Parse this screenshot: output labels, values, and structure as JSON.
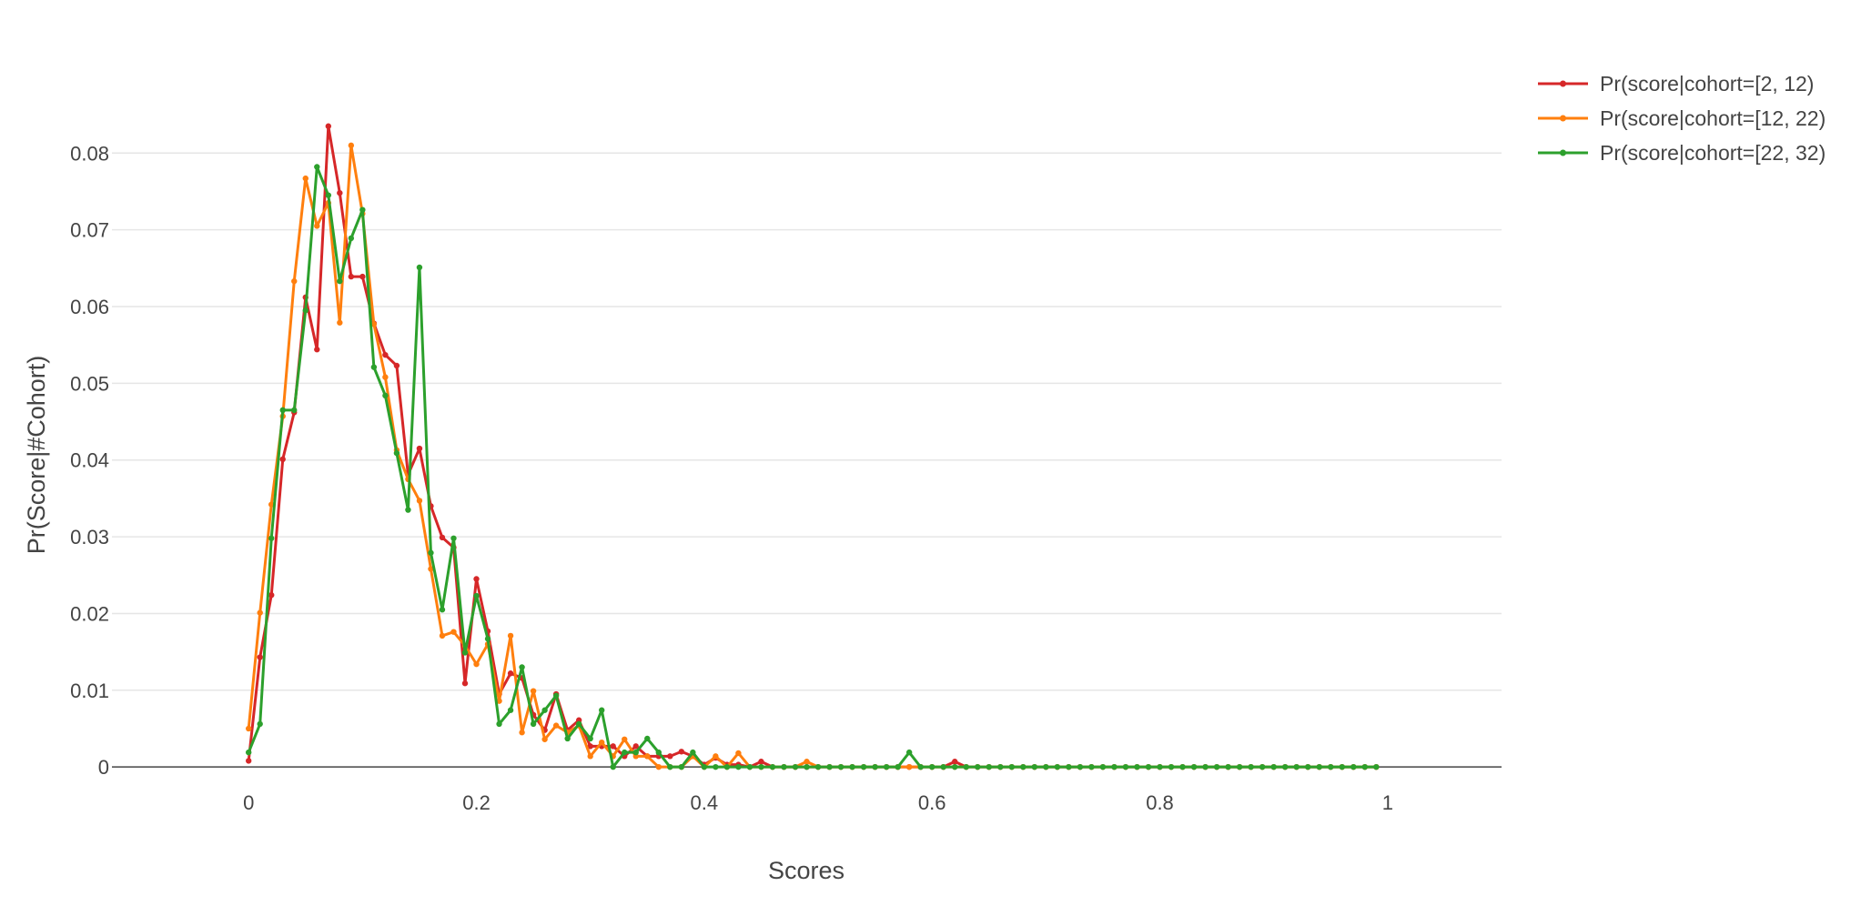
{
  "chart_data": {
    "type": "line",
    "title": "",
    "xlabel": "Scores",
    "ylabel": "Pr(Score|#Cohort)",
    "xlim": [
      -0.12,
      1.1
    ],
    "ylim": [
      -0.0065,
      0.0875
    ],
    "x_ticks": [
      {
        "value": 0,
        "label": "0"
      },
      {
        "value": 0.2,
        "label": "0.2"
      },
      {
        "value": 0.4,
        "label": "0.4"
      },
      {
        "value": 0.6,
        "label": "0.6"
      },
      {
        "value": 0.8,
        "label": "0.8"
      },
      {
        "value": 1,
        "label": "1"
      }
    ],
    "y_ticks": [
      {
        "value": 0,
        "label": "0"
      },
      {
        "value": 0.01,
        "label": "0.01"
      },
      {
        "value": 0.02,
        "label": "0.02"
      },
      {
        "value": 0.03,
        "label": "0.03"
      },
      {
        "value": 0.04,
        "label": "0.04"
      },
      {
        "value": 0.05,
        "label": "0.05"
      },
      {
        "value": 0.06,
        "label": "0.06"
      },
      {
        "value": 0.07,
        "label": "0.07"
      },
      {
        "value": 0.08,
        "label": "0.08"
      }
    ],
    "grid": true,
    "legend_position": "top-right",
    "x": [
      0,
      0.01,
      0.02,
      0.03,
      0.04,
      0.05,
      0.06,
      0.07,
      0.08,
      0.09,
      0.1,
      0.11,
      0.12,
      0.13,
      0.14,
      0.15,
      0.16,
      0.17,
      0.18,
      0.19,
      0.2,
      0.21,
      0.22,
      0.23,
      0.24,
      0.25,
      0.26,
      0.27,
      0.28,
      0.29,
      0.3,
      0.31,
      0.32,
      0.33,
      0.34,
      0.35,
      0.36,
      0.37,
      0.38,
      0.39,
      0.4,
      0.41,
      0.42,
      0.43,
      0.44,
      0.45,
      0.46,
      0.47,
      0.48,
      0.49,
      0.5,
      0.51,
      0.52,
      0.53,
      0.54,
      0.55,
      0.56,
      0.57,
      0.58,
      0.59,
      0.6,
      0.61,
      0.62,
      0.63,
      0.64,
      0.65,
      0.66,
      0.67,
      0.68,
      0.69,
      0.7,
      0.71,
      0.72,
      0.73,
      0.74,
      0.75,
      0.76,
      0.77,
      0.78,
      0.79,
      0.8,
      0.81,
      0.82,
      0.83,
      0.84,
      0.85,
      0.86,
      0.87,
      0.88,
      0.89,
      0.9,
      0.91,
      0.92,
      0.93,
      0.94,
      0.95,
      0.96,
      0.97,
      0.98,
      0.99
    ],
    "series": [
      {
        "name": "Pr(score|cohort=[2, 12)",
        "color": "#d62728",
        "values": [
          0.0008,
          0.0143,
          0.0224,
          0.0401,
          0.0462,
          0.0612,
          0.0544,
          0.0835,
          0.0748,
          0.0639,
          0.0639,
          0.0578,
          0.0537,
          0.0523,
          0.0381,
          0.0415,
          0.034,
          0.0299,
          0.0286,
          0.0109,
          0.0245,
          0.0177,
          0.0095,
          0.0122,
          0.0116,
          0.0068,
          0.0048,
          0.0095,
          0.0048,
          0.0061,
          0.0027,
          0.0027,
          0.0027,
          0.0014,
          0.0027,
          0.0014,
          0.0014,
          0.0014,
          0.002,
          0.0014,
          0.0003,
          0.0012,
          0.0003,
          0.0003,
          0.0,
          0.0007,
          0.0,
          0.0,
          0.0,
          0.0,
          0.0,
          0.0,
          0.0,
          0.0,
          0.0,
          0.0,
          0.0,
          0.0,
          0.0,
          0.0,
          0.0,
          0.0,
          0.0007,
          0.0,
          0.0,
          0.0,
          0.0,
          0.0,
          0.0,
          0.0,
          0.0,
          0.0,
          0.0,
          0.0,
          0.0,
          0.0,
          0.0,
          0.0,
          0.0,
          0.0,
          0.0,
          0.0,
          0.0,
          0.0,
          0.0,
          0.0,
          0.0,
          0.0,
          0.0,
          0.0,
          0.0,
          0.0,
          0.0,
          0.0,
          0.0,
          0.0,
          0.0,
          0.0,
          0.0,
          0.0
        ]
      },
      {
        "name": "Pr(score|cohort=[12, 22)",
        "color": "#ff7f0e",
        "values": [
          0.005,
          0.0201,
          0.0342,
          0.0457,
          0.0633,
          0.0767,
          0.0705,
          0.0735,
          0.0579,
          0.081,
          0.0721,
          0.0577,
          0.0508,
          0.0413,
          0.0375,
          0.0347,
          0.0258,
          0.0171,
          0.0176,
          0.0158,
          0.0134,
          0.016,
          0.0086,
          0.0171,
          0.0045,
          0.0099,
          0.0036,
          0.0054,
          0.0045,
          0.0054,
          0.0014,
          0.0032,
          0.0014,
          0.0036,
          0.0014,
          0.0014,
          0.0,
          0.0,
          0.0,
          0.0014,
          0.0,
          0.0014,
          0.0,
          0.0018,
          0.0,
          0.0,
          0.0,
          0.0,
          0.0,
          0.0007,
          0.0,
          0.0,
          0.0,
          0.0,
          0.0,
          0.0,
          0.0,
          0.0,
          0.0,
          0.0,
          0.0,
          0.0,
          0.0,
          0.0,
          0.0,
          0.0,
          0.0,
          0.0,
          0.0,
          0.0,
          0.0,
          0.0,
          0.0,
          0.0,
          0.0,
          0.0,
          0.0,
          0.0,
          0.0,
          0.0,
          0.0,
          0.0,
          0.0,
          0.0,
          0.0,
          0.0,
          0.0,
          0.0,
          0.0,
          0.0,
          0.0,
          0.0,
          0.0,
          0.0,
          0.0,
          0.0,
          0.0,
          0.0,
          0.0,
          0.0
        ]
      },
      {
        "name": "Pr(score|cohort=[22, 32)",
        "color": "#2ca02c",
        "values": [
          0.0019,
          0.0056,
          0.0298,
          0.0465,
          0.0465,
          0.0595,
          0.0782,
          0.0745,
          0.0633,
          0.0689,
          0.0726,
          0.0521,
          0.0484,
          0.0409,
          0.0335,
          0.0651,
          0.0279,
          0.0205,
          0.0298,
          0.0149,
          0.0223,
          0.0167,
          0.0056,
          0.0074,
          0.013,
          0.0056,
          0.0074,
          0.0093,
          0.0037,
          0.0056,
          0.0037,
          0.0074,
          0.0,
          0.0019,
          0.0019,
          0.0037,
          0.0019,
          0.0,
          0.0,
          0.0019,
          0.0,
          0.0,
          0.0,
          0.0,
          0.0,
          0.0,
          0.0,
          0.0,
          0.0,
          0.0,
          0.0,
          0.0,
          0.0,
          0.0,
          0.0,
          0.0,
          0.0,
          0.0,
          0.0019,
          0.0,
          0.0,
          0.0,
          0.0,
          0.0,
          0.0,
          0.0,
          0.0,
          0.0,
          0.0,
          0.0,
          0.0,
          0.0,
          0.0,
          0.0,
          0.0,
          0.0,
          0.0,
          0.0,
          0.0,
          0.0,
          0.0,
          0.0,
          0.0,
          0.0,
          0.0,
          0.0,
          0.0,
          0.0,
          0.0,
          0.0,
          0.0,
          0.0,
          0.0,
          0.0,
          0.0,
          0.0,
          0.0,
          0.0,
          0.0,
          0.0
        ]
      }
    ]
  }
}
